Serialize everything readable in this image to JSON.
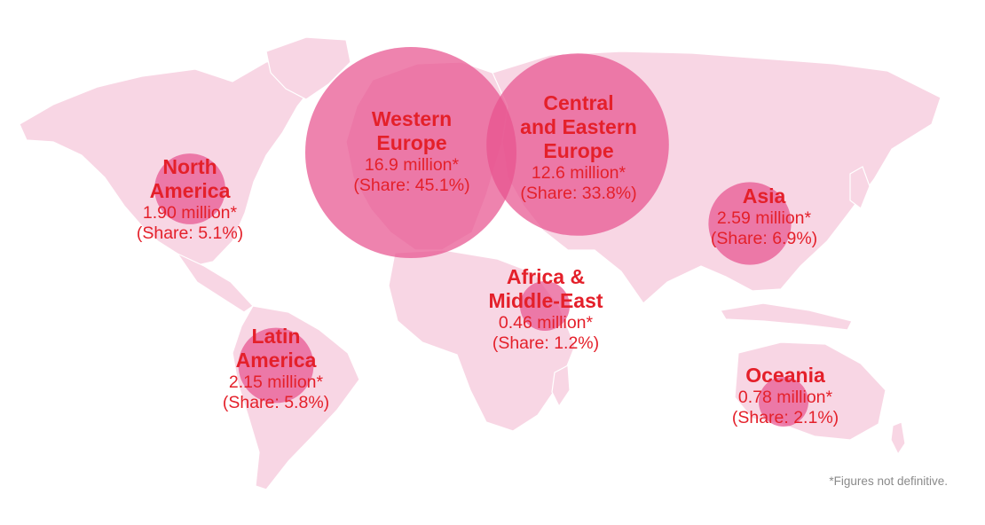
{
  "colors": {
    "land": "#f8d6e4",
    "land_outline": "#ffffff",
    "bubble": "#e8538f",
    "text_accent": "#e4202a",
    "footnote": "#8a8a8a"
  },
  "regions": [
    {
      "key": "north-america",
      "name": "North\nAmerica",
      "value": "1.90 million*",
      "share": "(Share: 5.1%)",
      "value_millions": 1.9,
      "share_pct": 5.1
    },
    {
      "key": "western-europe",
      "name": "Western\nEurope",
      "value": "16.9 million*",
      "share": "(Share: 45.1%)",
      "value_millions": 16.9,
      "share_pct": 45.1
    },
    {
      "key": "central-eastern-europe",
      "name": "Central\nand Eastern\nEurope",
      "value": "12.6 million*",
      "share": "(Share: 33.8%)",
      "value_millions": 12.6,
      "share_pct": 33.8
    },
    {
      "key": "asia",
      "name": "Asia",
      "value": "2.59 million*",
      "share": "(Share: 6.9%)",
      "value_millions": 2.59,
      "share_pct": 6.9
    },
    {
      "key": "africa-middle-east",
      "name": "Africa &\nMiddle-East",
      "value": "0.46 million*",
      "share": "(Share: 1.2%)",
      "value_millions": 0.46,
      "share_pct": 1.2
    },
    {
      "key": "latin-america",
      "name": "Latin\nAmerica",
      "value": "2.15 million*",
      "share": "(Share: 5.8%)",
      "value_millions": 2.15,
      "share_pct": 5.8
    },
    {
      "key": "oceania",
      "name": "Oceania",
      "value": "0.78 million*",
      "share": "(Share: 2.1%)",
      "value_millions": 0.78,
      "share_pct": 2.1
    }
  ],
  "footnote": "*Figures not definitive."
}
